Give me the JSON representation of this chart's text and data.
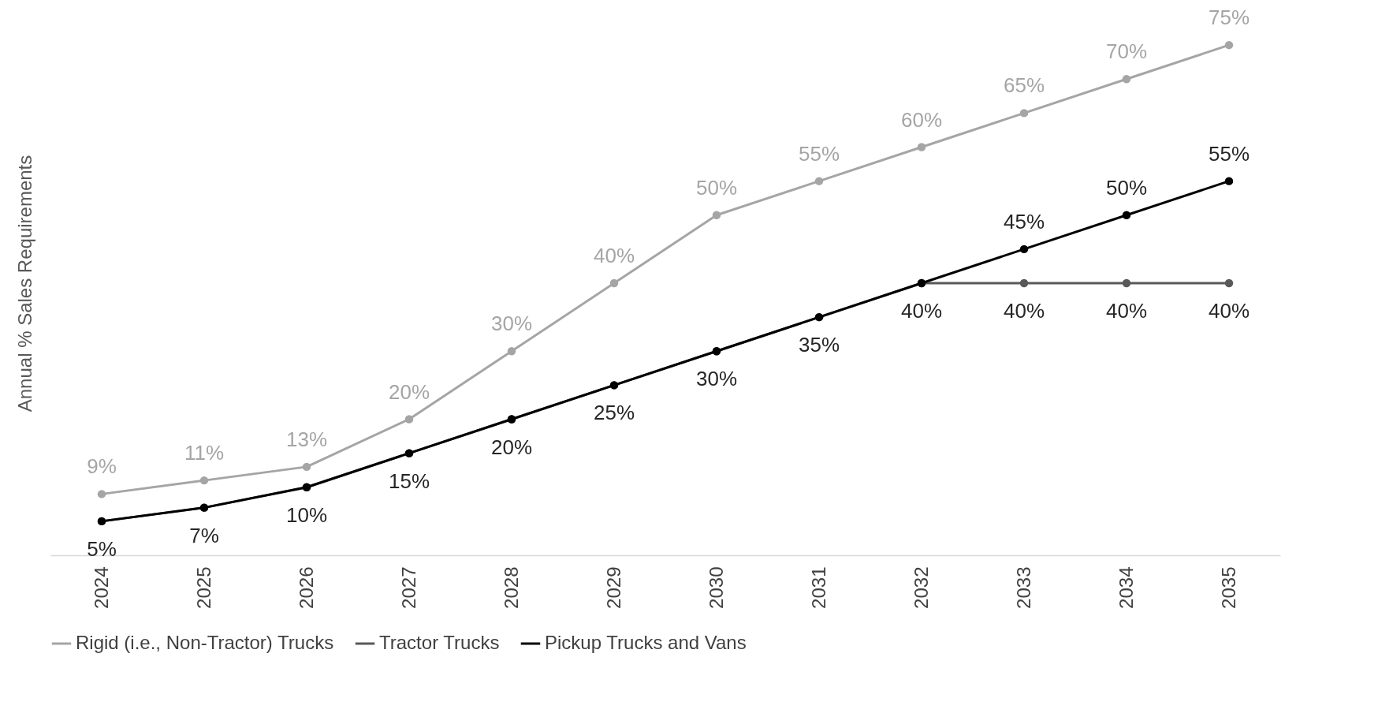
{
  "chart_data": {
    "type": "line",
    "ylabel": "Annual % Sales Requirements",
    "categories": [
      "2024",
      "2025",
      "2026",
      "2027",
      "2028",
      "2029",
      "2030",
      "2031",
      "2032",
      "2033",
      "2034",
      "2035"
    ],
    "series": [
      {
        "name": "Rigid (i.e., Non-Tractor) Trucks",
        "color": "#a5a5a5",
        "values": [
          9,
          11,
          13,
          20,
          30,
          40,
          50,
          55,
          60,
          65,
          70,
          75
        ],
        "value_labels": [
          "9%",
          "11%",
          "13%",
          "20%",
          "30%",
          "40%",
          "50%",
          "55%",
          "60%",
          "65%",
          "70%",
          "75%"
        ]
      },
      {
        "name": "Tractor Trucks",
        "color": "#595959",
        "values": [
          5,
          7,
          10,
          15,
          20,
          25,
          30,
          35,
          40,
          40,
          40,
          40
        ],
        "value_labels": [
          "5%",
          "7%",
          "10%",
          "15%",
          "20%",
          "25%",
          "30%",
          "35%",
          "40%",
          "40%",
          "40%",
          "40%"
        ]
      },
      {
        "name": "Pickup Trucks and Vans",
        "color": "#000000",
        "values": [
          5,
          7,
          10,
          15,
          20,
          25,
          30,
          35,
          40,
          45,
          50,
          55
        ],
        "value_labels": [
          null,
          null,
          null,
          null,
          null,
          null,
          null,
          null,
          null,
          "45%",
          "50%",
          "55%"
        ]
      }
    ],
    "tick_labels": "x",
    "legend": "bottom",
    "marker": "circle"
  }
}
